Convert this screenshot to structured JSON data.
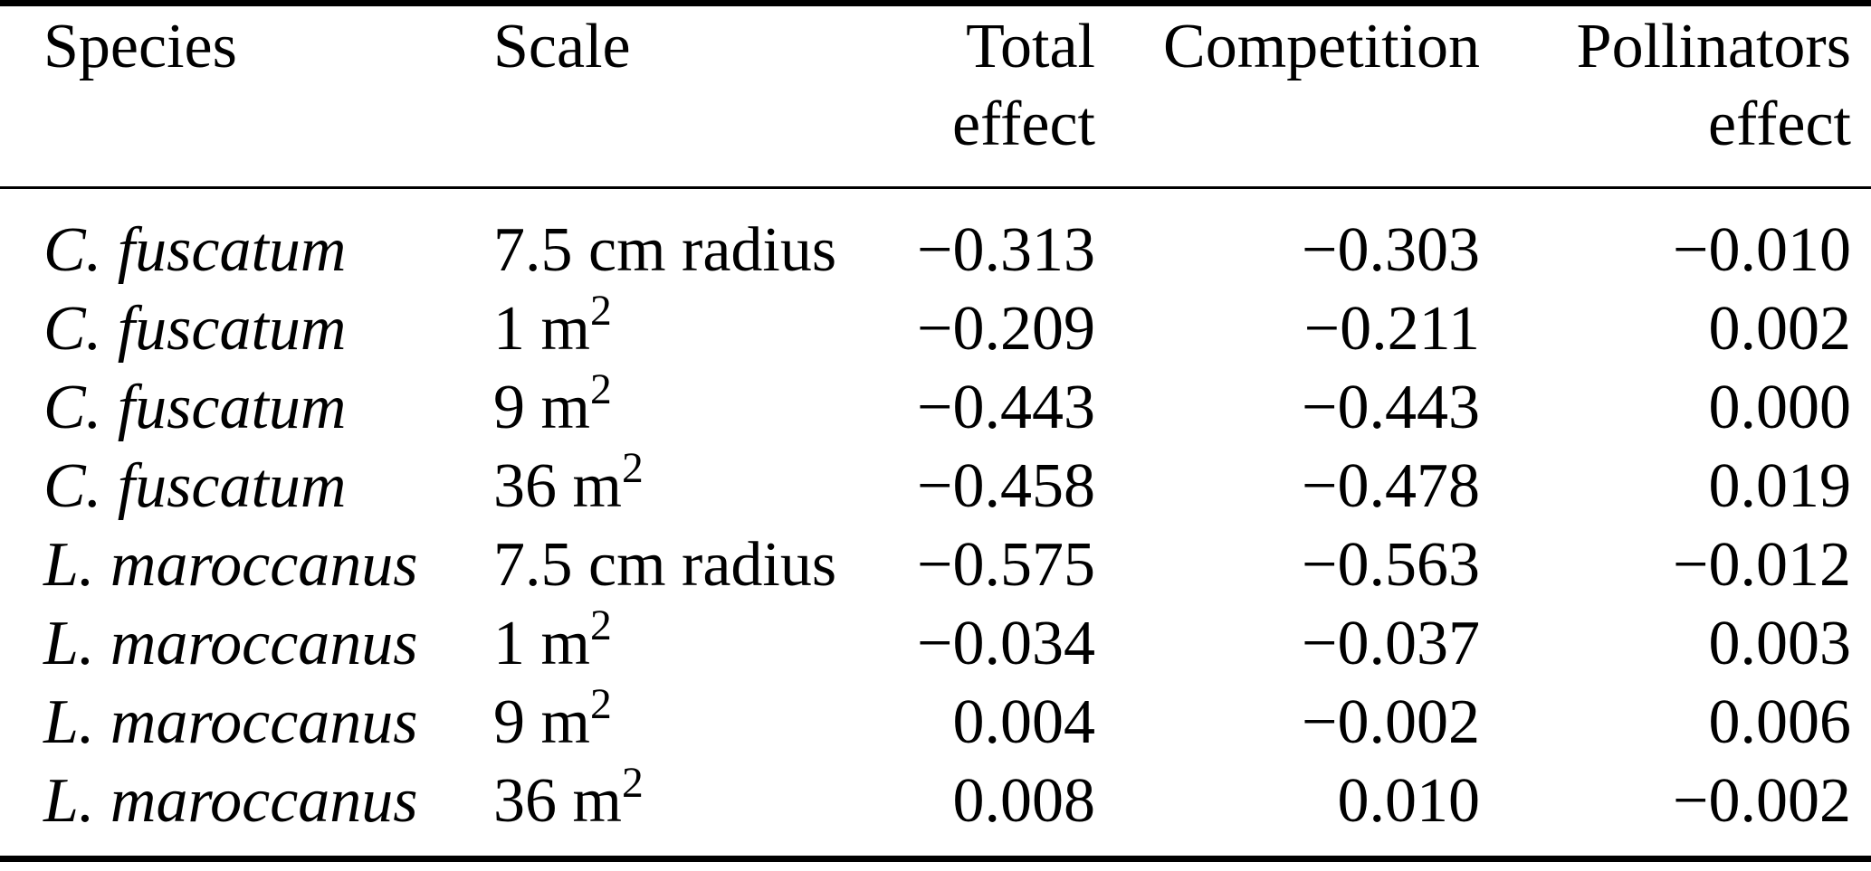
{
  "table": {
    "header": {
      "species": {
        "l1": "Species",
        "l2": ""
      },
      "scale": {
        "l1": "Scale",
        "l2": ""
      },
      "total": {
        "l1": "Total",
        "l2": "effect"
      },
      "competition": {
        "l1": "Competition",
        "l2": ""
      },
      "pollinators": {
        "l1": "Pollinators",
        "l2": "effect"
      }
    },
    "rows": [
      {
        "species": "C. fuscatum",
        "scale_base": "7.5 cm radius",
        "scale_sup": "",
        "total": "−0.313",
        "competition": "−0.303",
        "pollinators": "−0.010"
      },
      {
        "species": "C. fuscatum",
        "scale_base": "1 m",
        "scale_sup": "2",
        "total": "−0.209",
        "competition": "−0.211",
        "pollinators": "0.002"
      },
      {
        "species": "C. fuscatum",
        "scale_base": "9 m",
        "scale_sup": "2",
        "total": "−0.443",
        "competition": "−0.443",
        "pollinators": "0.000"
      },
      {
        "species": "C. fuscatum",
        "scale_base": "36 m",
        "scale_sup": "2",
        "total": "−0.458",
        "competition": "−0.478",
        "pollinators": "0.019"
      },
      {
        "species": "L. maroccanus",
        "scale_base": "7.5 cm radius",
        "scale_sup": "",
        "total": "−0.575",
        "competition": "−0.563",
        "pollinators": "−0.012"
      },
      {
        "species": "L. maroccanus",
        "scale_base": "1 m",
        "scale_sup": "2",
        "total": "−0.034",
        "competition": "−0.037",
        "pollinators": "0.003"
      },
      {
        "species": "L. maroccanus",
        "scale_base": "9 m",
        "scale_sup": "2",
        "total": "0.004",
        "competition": "−0.002",
        "pollinators": "0.006"
      },
      {
        "species": "L. maroccanus",
        "scale_base": "36 m",
        "scale_sup": "2",
        "total": "0.008",
        "competition": "0.010",
        "pollinators": "−0.002"
      }
    ],
    "colors": {
      "text": "#000000",
      "background": "#ffffff",
      "rule": "#000000"
    }
  }
}
